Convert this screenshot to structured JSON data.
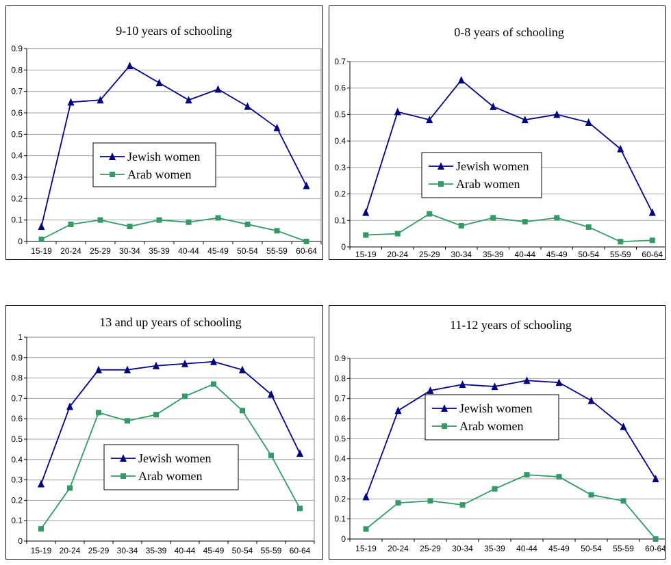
{
  "chart_data": [
    {
      "type": "line",
      "title": "9-10 years of schooling",
      "categories": [
        "15-19",
        "20-24",
        "25-29",
        "30-34",
        "35-39",
        "40-44",
        "45-49",
        "50-54",
        "55-59",
        "60-64"
      ],
      "ylim": [
        0,
        0.9
      ],
      "yticks": [
        "0",
        "0.1",
        "0.2",
        "0.3",
        "0.4",
        "0.5",
        "0.6",
        "0.7",
        "0.8",
        "0.9"
      ],
      "grid": true,
      "legend_position": "center",
      "series": [
        {
          "name": "Jewish women",
          "color": "#000080",
          "marker": "triangle",
          "values": [
            0.07,
            0.65,
            0.66,
            0.82,
            0.74,
            0.66,
            0.71,
            0.63,
            0.53,
            0.26
          ]
        },
        {
          "name": "Arab women",
          "color": "#339966",
          "marker": "square",
          "values": [
            0.01,
            0.08,
            0.1,
            0.07,
            0.1,
            0.09,
            0.11,
            0.08,
            0.05,
            0.0
          ]
        }
      ]
    },
    {
      "type": "line",
      "title": "0-8 years of schooling",
      "categories": [
        "15-19",
        "20-24",
        "25-29",
        "30-34",
        "35-39",
        "40-44",
        "45-49",
        "50-54",
        "55-59",
        "60-64"
      ],
      "ylim": [
        0,
        0.7
      ],
      "yticks": [
        "0",
        "0.1",
        "0.2",
        "0.3",
        "0.4",
        "0.5",
        "0.6",
        "0.7"
      ],
      "grid": true,
      "legend_position": "center",
      "series": [
        {
          "name": "Jewish women",
          "color": "#000080",
          "marker": "triangle",
          "values": [
            0.13,
            0.51,
            0.48,
            0.63,
            0.53,
            0.48,
            0.5,
            0.47,
            0.37,
            0.13
          ]
        },
        {
          "name": "Arab women",
          "color": "#339966",
          "marker": "square",
          "values": [
            0.045,
            0.05,
            0.125,
            0.08,
            0.11,
            0.095,
            0.11,
            0.075,
            0.02,
            0.025
          ]
        }
      ]
    },
    {
      "type": "line",
      "title": "13 and up years of schooling",
      "categories": [
        "15-19",
        "20-24",
        "25-29",
        "30-34",
        "35-39",
        "40-44",
        "45-49",
        "50-54",
        "55-59",
        "60-64"
      ],
      "ylim": [
        0,
        1
      ],
      "yticks": [
        "0",
        "0.1",
        "0.2",
        "0.3",
        "0.4",
        "0.5",
        "0.6",
        "0.7",
        "0.8",
        "0.9",
        "1"
      ],
      "grid": true,
      "legend_position": "center-right",
      "series": [
        {
          "name": "Jewish women",
          "color": "#000080",
          "marker": "triangle",
          "values": [
            0.28,
            0.66,
            0.84,
            0.84,
            0.86,
            0.87,
            0.88,
            0.84,
            0.72,
            0.43
          ]
        },
        {
          "name": "Arab women",
          "color": "#339966",
          "marker": "square",
          "values": [
            0.06,
            0.26,
            0.63,
            0.59,
            0.62,
            0.71,
            0.77,
            0.64,
            0.42,
            0.16
          ]
        }
      ]
    },
    {
      "type": "line",
      "title": "11-12 years of schooling",
      "categories": [
        "15-19",
        "20-24",
        "25-29",
        "30-34",
        "35-39",
        "40-44",
        "45-49",
        "50-54",
        "55-59",
        "60-64"
      ],
      "ylim": [
        0,
        0.9
      ],
      "yticks": [
        "0",
        "0.1",
        "0.2",
        "0.3",
        "0.4",
        "0.5",
        "0.6",
        "0.7",
        "0.8",
        "0.9"
      ],
      "grid": true,
      "legend_position": "center",
      "series": [
        {
          "name": "Jewish women",
          "color": "#000080",
          "marker": "triangle",
          "values": [
            0.21,
            0.64,
            0.74,
            0.77,
            0.76,
            0.79,
            0.78,
            0.69,
            0.56,
            0.3
          ]
        },
        {
          "name": "Arab women",
          "color": "#339966",
          "marker": "square",
          "values": [
            0.05,
            0.18,
            0.19,
            0.17,
            0.25,
            0.32,
            0.31,
            0.22,
            0.19,
            0.0
          ]
        }
      ]
    }
  ]
}
